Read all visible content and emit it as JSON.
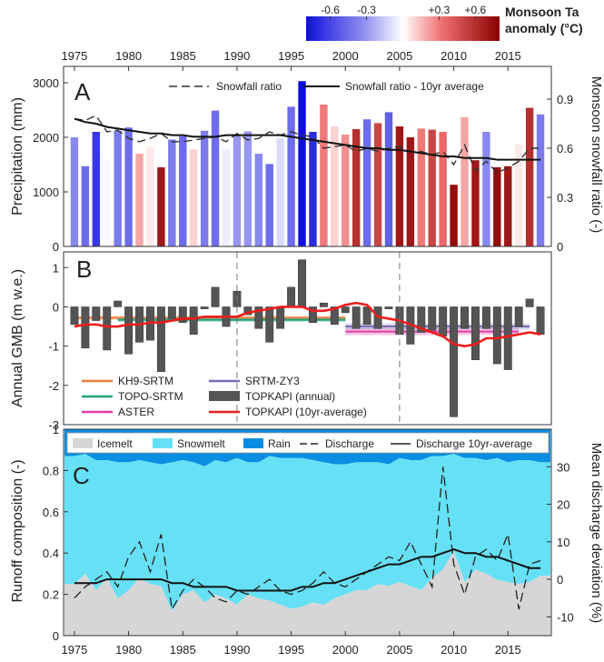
{
  "colorbar": {
    "label_line1": "Monsoon Ta",
    "label_line2": "anomaly (°C)",
    "ticks": [
      "-0.6",
      "-0.3",
      "+0.3",
      "+0.6"
    ],
    "range": [
      -0.8,
      0.8
    ]
  },
  "chart_data": [
    {
      "panel_letter": "A",
      "type": "bar",
      "ylabel": "Precipitation (mm)",
      "y2label": "Monsoon snowfall ratio (-)",
      "ylim": [
        0,
        3300
      ],
      "y2lim": [
        0,
        1.1
      ],
      "yticks": [
        0,
        1000,
        2000,
        3000
      ],
      "y2ticks": [
        "0",
        "0.3",
        "0.6",
        "0.9"
      ],
      "xlim": [
        1974,
        2019
      ],
      "xticks": [
        1975,
        1980,
        1985,
        1990,
        1995,
        2000,
        2005,
        2010,
        2015
      ],
      "years": [
        1975,
        1976,
        1977,
        1978,
        1979,
        1980,
        1981,
        1982,
        1983,
        1984,
        1985,
        1986,
        1987,
        1988,
        1989,
        1990,
        1991,
        1992,
        1993,
        1994,
        1995,
        1996,
        1997,
        1998,
        1999,
        2000,
        2001,
        2002,
        2003,
        2004,
        2005,
        2006,
        2007,
        2008,
        2009,
        2010,
        2011,
        2012,
        2013,
        2014,
        2015,
        2016,
        2017,
        2018
      ],
      "precipitation": [
        2000,
        1470,
        2100,
        1600,
        2120,
        2180,
        1700,
        1820,
        1450,
        1960,
        2020,
        1780,
        2120,
        2490,
        1780,
        2050,
        2110,
        1700,
        1510,
        1980,
        2560,
        3030,
        2100,
        2600,
        2200,
        2050,
        2150,
        2330,
        2260,
        2460,
        2200,
        2000,
        2160,
        2140,
        2100,
        1130,
        2370,
        1580,
        2100,
        1450,
        1470,
        1870,
        2540,
        2420
      ],
      "temperature_anomaly": [
        -0.35,
        -0.45,
        -0.65,
        -0.02,
        -0.4,
        -0.45,
        0.2,
        0.05,
        0.7,
        -0.4,
        -0.45,
        0.1,
        -0.4,
        -0.45,
        -0.05,
        -0.3,
        -0.3,
        -0.35,
        -0.45,
        -0.1,
        -0.45,
        -0.8,
        -0.7,
        0.3,
        0.1,
        0.25,
        0.6,
        -0.45,
        0.5,
        -0.5,
        0.7,
        0.7,
        0.3,
        0.5,
        0.35,
        0.75,
        0.2,
        0.7,
        -0.35,
        0.75,
        0.7,
        0.05,
        0.6,
        -0.4
      ],
      "series": [
        {
          "name": "Snowfall ratio",
          "values": [
            0.78,
            0.77,
            0.8,
            0.7,
            0.71,
            0.66,
            0.64,
            0.66,
            0.69,
            0.64,
            0.64,
            0.65,
            0.66,
            0.67,
            0.64,
            0.69,
            0.65,
            0.66,
            0.7,
            0.68,
            0.7,
            0.68,
            0.67,
            0.6,
            0.61,
            0.62,
            0.58,
            0.6,
            0.58,
            0.6,
            0.61,
            0.58,
            0.58,
            0.56,
            0.58,
            0.5,
            0.62,
            0.46,
            0.52,
            0.45,
            0.48,
            0.52,
            0.6,
            0.6
          ]
        },
        {
          "name": "Snowfall ratio - 10yr average",
          "values": [
            0.78,
            0.76,
            0.75,
            0.73,
            0.72,
            0.71,
            0.7,
            0.69,
            0.69,
            0.68,
            0.68,
            0.67,
            0.67,
            0.67,
            0.68,
            0.68,
            0.68,
            0.68,
            0.68,
            0.68,
            0.67,
            0.66,
            0.65,
            0.64,
            0.63,
            0.62,
            0.61,
            0.6,
            0.6,
            0.59,
            0.59,
            0.58,
            0.57,
            0.56,
            0.55,
            0.55,
            0.54,
            0.54,
            0.54,
            0.53,
            0.53,
            0.53,
            0.53,
            0.53
          ]
        }
      ]
    },
    {
      "panel_letter": "B",
      "type": "bar",
      "ylabel": "Annual GMB (m w.e.)",
      "ylim": [
        -3,
        1.4
      ],
      "yticks": [
        -3,
        -2,
        -1,
        0,
        1
      ],
      "vlines": [
        1990,
        2005
      ],
      "annual_gmb": [
        -0.45,
        -1.05,
        -0.35,
        -1.1,
        0.15,
        -1.2,
        -0.9,
        -0.85,
        -1.65,
        -0.3,
        -0.4,
        -0.7,
        -0.05,
        0.5,
        -0.5,
        0.4,
        -0.2,
        -0.55,
        -0.9,
        -0.55,
        0.5,
        1.2,
        -0.4,
        0.1,
        -0.45,
        -0.15,
        -0.55,
        -0.45,
        -0.55,
        -0.05,
        -0.7,
        -0.95,
        -0.65,
        -0.6,
        -0.75,
        -2.8,
        -0.55,
        -1.35,
        -0.55,
        -1.45,
        -1.6,
        -0.5,
        0.2,
        -0.7
      ],
      "series": [
        {
          "name": "TOPKAPI (10yr-average)",
          "values": [
            -0.5,
            -0.45,
            -0.45,
            -0.5,
            -0.5,
            -0.45,
            -0.45,
            -0.4,
            -0.4,
            -0.35,
            -0.3,
            -0.3,
            -0.25,
            -0.25,
            -0.25,
            -0.25,
            -0.15,
            -0.1,
            -0.05,
            0.0,
            0.0,
            0.0,
            -0.1,
            -0.1,
            -0.05,
            0.05,
            0.1,
            0.05,
            -0.25,
            -0.3,
            -0.35,
            -0.45,
            -0.55,
            -0.65,
            -0.75,
            -0.95,
            -1.0,
            -0.95,
            -0.8,
            -0.8,
            -0.75,
            -0.7,
            -0.65,
            -0.7
          ]
        }
      ],
      "geodetic": [
        {
          "name": "KH9-SRTM",
          "color": "#f47b3b",
          "from": 1975,
          "to": 2000,
          "value": -0.28,
          "band": 0.1
        },
        {
          "name": "TOPO-SRTM",
          "color": "#1aa37d",
          "from": 1979,
          "to": 2000,
          "value": -0.33,
          "band": 0.1
        },
        {
          "name": "ASTER",
          "color": "#e03fa6",
          "from": 2000,
          "to": 2016,
          "value": -0.63,
          "band": 0.18
        },
        {
          "name": "SRTM-ZY3",
          "color": "#7a6db5",
          "from": 2000,
          "to": 2017,
          "value": -0.5,
          "band": 0.15
        }
      ],
      "legend": [
        {
          "label": "KH9-SRTM",
          "color": "#f47b3b",
          "kind": "line"
        },
        {
          "label": "SRTM-ZY3",
          "color": "#7a6db5",
          "kind": "line"
        },
        {
          "label": "TOPO-SRTM",
          "color": "#1aa37d",
          "kind": "line"
        },
        {
          "label": "TOPKAPI (annual)",
          "color": "#555555",
          "kind": "box"
        },
        {
          "label": "ASTER",
          "color": "#e03fa6",
          "kind": "line"
        },
        {
          "label": "TOPKAPI (10yr-average)",
          "color": "#ee1c1c",
          "kind": "line"
        }
      ]
    },
    {
      "panel_letter": "C",
      "type": "area",
      "ylabel": "Runoff composition (-)",
      "y2label": "Mean discharge deviation (%)",
      "ylim": [
        0,
        1
      ],
      "y2lim": [
        -15,
        40
      ],
      "yticks": [
        "0",
        "0.2",
        "0.4",
        "0.6",
        "0.8",
        "1"
      ],
      "y2ticks": [
        -10,
        0,
        10,
        20,
        30
      ],
      "xticks": [
        1975,
        1980,
        1985,
        1990,
        1995,
        2000,
        2005,
        2010,
        2015
      ],
      "colors": {
        "icemelt": "#d6d6d6",
        "snowmelt": "#66e0f4",
        "rain": "#0a8ee2"
      },
      "icemelt": [
        0.25,
        0.3,
        0.22,
        0.28,
        0.18,
        0.22,
        0.28,
        0.25,
        0.24,
        0.12,
        0.2,
        0.22,
        0.16,
        0.2,
        0.18,
        0.15,
        0.2,
        0.18,
        0.17,
        0.15,
        0.13,
        0.14,
        0.16,
        0.15,
        0.18,
        0.2,
        0.22,
        0.22,
        0.25,
        0.24,
        0.26,
        0.24,
        0.22,
        0.28,
        0.32,
        0.41,
        0.26,
        0.32,
        0.3,
        0.27,
        0.26,
        0.25,
        0.26,
        0.29
      ],
      "snowmelt_top": [
        0.87,
        0.88,
        0.85,
        0.85,
        0.84,
        0.84,
        0.85,
        0.84,
        0.83,
        0.84,
        0.85,
        0.84,
        0.82,
        0.85,
        0.84,
        0.86,
        0.84,
        0.84,
        0.87,
        0.86,
        0.86,
        0.86,
        0.85,
        0.84,
        0.83,
        0.83,
        0.84,
        0.84,
        0.84,
        0.83,
        0.86,
        0.85,
        0.85,
        0.87,
        0.87,
        0.88,
        0.86,
        0.86,
        0.85,
        0.86,
        0.84,
        0.85,
        0.85,
        0.84
      ],
      "series": [
        {
          "name": "Discharge",
          "values": [
            -5,
            -2,
            0,
            2,
            -2,
            6,
            10,
            2,
            12,
            -8,
            -3,
            0,
            -2,
            -5,
            -6,
            -3,
            -4,
            -2,
            0,
            -3,
            -4,
            -3,
            -1,
            2,
            -1,
            -2,
            0,
            2,
            4,
            6,
            5,
            10,
            4,
            -2,
            30,
            4,
            -4,
            6,
            8,
            5,
            12,
            -8,
            4,
            5
          ]
        },
        {
          "name": "Discharge 10yr-average",
          "values": [
            -1,
            -1,
            -1,
            0,
            0,
            0,
            0,
            0,
            0,
            -1,
            -1,
            -2,
            -2,
            -2,
            -2,
            -3,
            -3,
            -3,
            -3,
            -3,
            -3,
            -2,
            -2,
            -1,
            -1,
            0,
            1,
            2,
            3,
            4,
            4,
            5,
            6,
            6,
            7,
            8,
            7,
            7,
            6,
            6,
            5,
            4,
            3,
            3
          ]
        }
      ],
      "legend": [
        {
          "label": "Icemelt",
          "color": "#d6d6d6",
          "kind": "box"
        },
        {
          "label": "Snowmelt",
          "color": "#66e0f4",
          "kind": "box"
        },
        {
          "label": "Rain",
          "color": "#0a8ee2",
          "kind": "box"
        },
        {
          "label": "Discharge",
          "color": "#222222",
          "kind": "dash"
        },
        {
          "label": "Discharge 10yr-average",
          "color": "#222222",
          "kind": "line"
        }
      ]
    }
  ]
}
